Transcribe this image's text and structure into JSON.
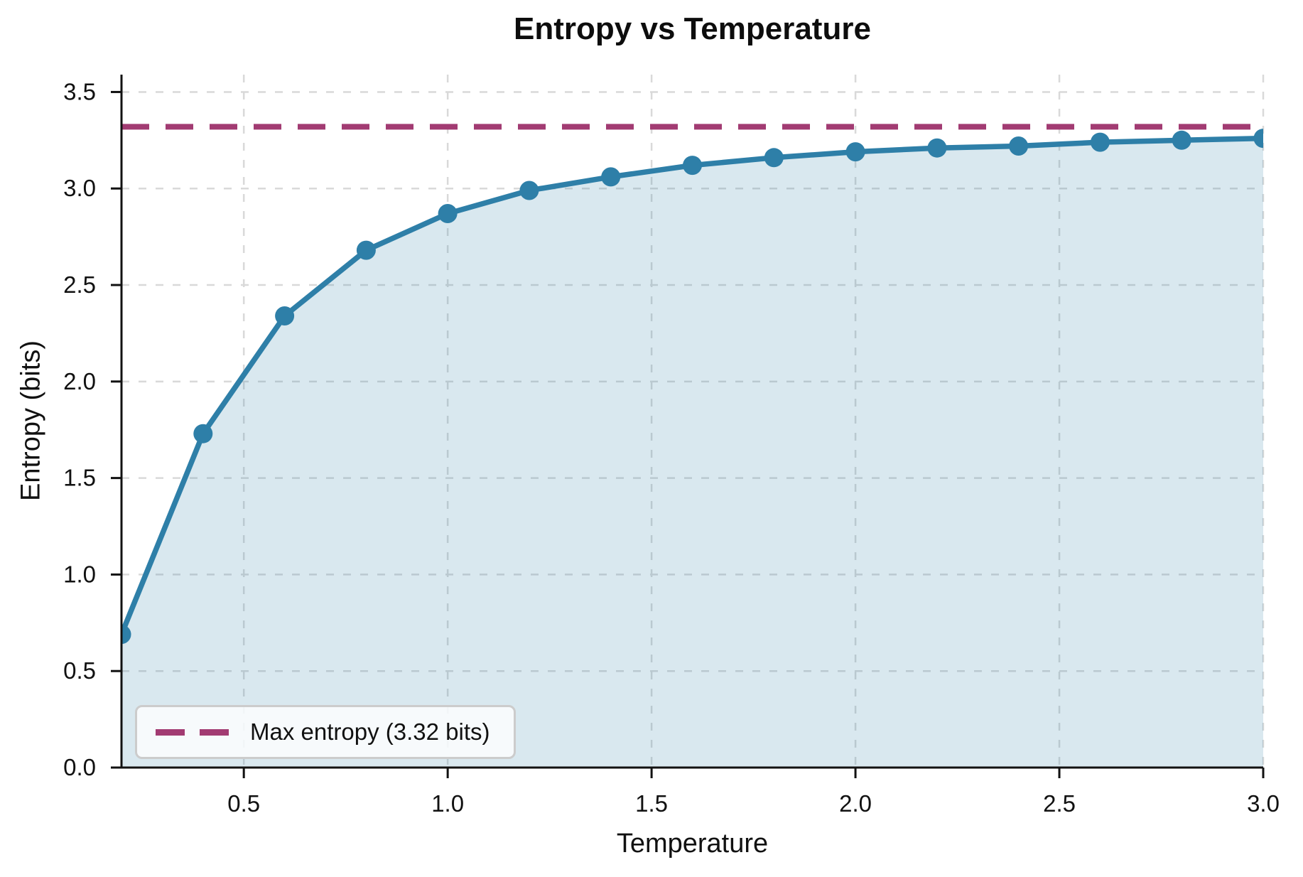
{
  "chart_data": {
    "type": "line",
    "title": "Entropy vs Temperature",
    "xlabel": "Temperature",
    "ylabel": "Entropy (bits)",
    "x": [
      0.2,
      0.4,
      0.6,
      0.8,
      1.0,
      1.2,
      1.4,
      1.6,
      1.8,
      2.0,
      2.2,
      2.4,
      2.6,
      2.8,
      3.0
    ],
    "series": [
      {
        "name": "Entropy",
        "values": [
          0.69,
          1.73,
          2.34,
          2.68,
          2.87,
          2.99,
          3.06,
          3.12,
          3.16,
          3.19,
          3.21,
          3.22,
          3.24,
          3.25,
          3.26
        ]
      }
    ],
    "max_entropy_line": {
      "value": 3.32,
      "style": "dashed"
    },
    "xlim": [
      0.2,
      3.0
    ],
    "ylim": [
      0,
      3.59
    ],
    "xticks": {
      "values": [
        0.5,
        1.0,
        1.5,
        2.0,
        2.5,
        3.0
      ],
      "labels": [
        "0.5",
        "1.0",
        "1.5",
        "2.0",
        "2.5",
        "3.0"
      ]
    },
    "yticks": {
      "values": [
        0.0,
        0.5,
        1.0,
        1.5,
        2.0,
        2.5,
        3.0,
        3.5
      ],
      "labels": [
        "0.0",
        "0.5",
        "1.0",
        "1.5",
        "2.0",
        "2.5",
        "3.0",
        "3.5"
      ]
    },
    "grid": true,
    "legend": {
      "position": "lower left",
      "entries": [
        {
          "label": "Max entropy (3.32 bits)",
          "style": "dashed"
        }
      ]
    },
    "colors": {
      "line": "#2e7fa8",
      "fill": "#2e7fa8",
      "fill_opacity": 0.18,
      "max_line": "#a23b72",
      "grid": "#d9d9d9",
      "spine": "#111111",
      "text": "#111111"
    }
  }
}
